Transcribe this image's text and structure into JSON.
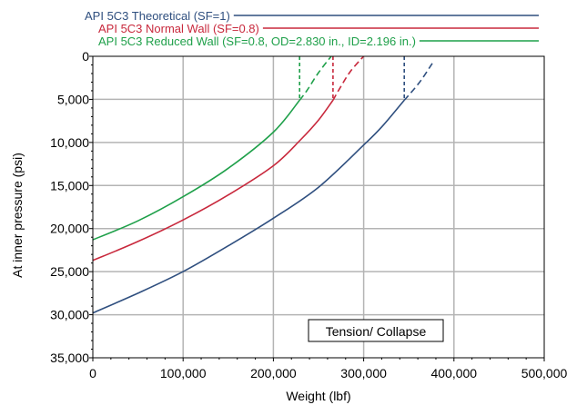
{
  "chart_data": {
    "type": "line",
    "title": "",
    "xlabel": "Weight (lbf)",
    "ylabel": "At inner pressure (psi)",
    "xlim": [
      0,
      500000
    ],
    "ylim": [
      0,
      35000
    ],
    "y_inverted": true,
    "grid": true,
    "legend_position": "top-right",
    "annotation": "Tension/ Collapse",
    "x_ticks": [
      0,
      100000,
      200000,
      300000,
      400000,
      500000
    ],
    "x_tick_labels": [
      "0",
      "100,000",
      "200,000",
      "300,000",
      "400,000",
      "500,000"
    ],
    "y_ticks": [
      0,
      5000,
      10000,
      15000,
      20000,
      25000,
      30000,
      35000
    ],
    "y_tick_labels": [
      "0",
      "5,000",
      "10,000",
      "15,000",
      "20,000",
      "25,000",
      "30,000",
      "35,000"
    ],
    "series": [
      {
        "name": "API 5C3 Theoretical  (SF=1)",
        "color": "#2f4f7f",
        "solid": [
          [
            0,
            29800
          ],
          [
            50000,
            27500
          ],
          [
            100000,
            25000
          ],
          [
            150000,
            22000
          ],
          [
            200000,
            18800
          ],
          [
            250000,
            15200
          ],
          [
            300000,
            10300
          ],
          [
            320000,
            8200
          ],
          [
            345000,
            5100
          ]
        ],
        "dashed": [
          [
            345000,
            5100
          ],
          [
            362000,
            3000
          ],
          [
            378000,
            500
          ]
        ],
        "drop": [
          [
            345000,
            0
          ],
          [
            345000,
            5100
          ]
        ]
      },
      {
        "name": "API 5C3 Normal Wall (SF=0.8)",
        "color": "#c8283c",
        "solid": [
          [
            0,
            23700
          ],
          [
            50000,
            21500
          ],
          [
            100000,
            19000
          ],
          [
            150000,
            16100
          ],
          [
            200000,
            12700
          ],
          [
            230000,
            9700
          ],
          [
            250000,
            7400
          ],
          [
            266000,
            5100
          ]
        ],
        "dashed": [
          [
            266000,
            5100
          ],
          [
            272000,
            4000
          ],
          [
            285000,
            1800
          ],
          [
            300000,
            0
          ]
        ],
        "drop": [
          [
            266000,
            0
          ],
          [
            266000,
            5100
          ]
        ]
      },
      {
        "name": "API 5C3 Reduced Wall (SF=0.8, OD=2.830 in., ID=2.196 in.)",
        "color": "#1fa04a",
        "solid": [
          [
            0,
            21300
          ],
          [
            50000,
            19100
          ],
          [
            100000,
            16300
          ],
          [
            150000,
            13000
          ],
          [
            200000,
            8800
          ],
          [
            229000,
            5100
          ]
        ],
        "dashed": [
          [
            229000,
            5100
          ],
          [
            237000,
            4000
          ],
          [
            250000,
            1900
          ],
          [
            264000,
            0
          ]
        ],
        "drop": [
          [
            229000,
            0
          ],
          [
            229000,
            5100
          ]
        ]
      }
    ]
  }
}
